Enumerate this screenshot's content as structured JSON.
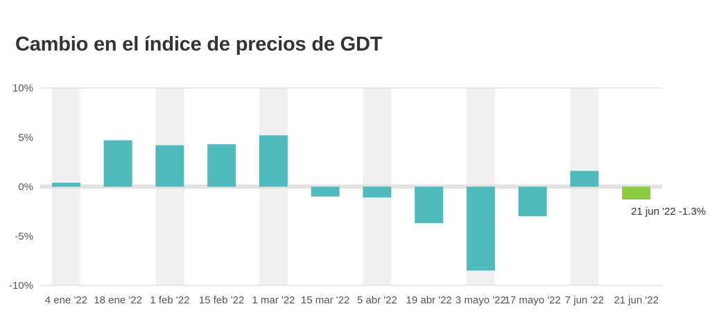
{
  "title": "Cambio en el índice de precios de GDT",
  "colors": {
    "bar": "#4fbbbd",
    "highlight_bar": "#8dcc3f",
    "band": "#f0f0f0",
    "zero_line": "#e2e2e2",
    "text": "#555555"
  },
  "chart_data": {
    "type": "bar",
    "title": "Cambio en el índice de precios de GDT",
    "xlabel": "",
    "ylabel": "",
    "categories": [
      "4 ene '22",
      "18 ene '22",
      "1 feb '22",
      "15 feb '22",
      "1 mar '22",
      "15 mar '22",
      "5 abr '22",
      "19 abr '22",
      "3 mayo '22",
      "17 mayo '22",
      "7 jun '22",
      "21 jun '22"
    ],
    "values": [
      0.4,
      4.7,
      4.2,
      4.3,
      5.2,
      -1.0,
      -1.1,
      -3.7,
      -8.5,
      -3.0,
      1.6,
      -1.3
    ],
    "highlight_index": 11,
    "ylim": [
      -10,
      10
    ],
    "yticks": [
      10,
      5,
      0,
      -5,
      -10
    ],
    "ytick_labels": [
      "10%",
      "5%",
      "0%",
      "-5%",
      "-10%"
    ],
    "annotation": "21 jun '22 -1.3%",
    "grid": "alternating vertical bands",
    "legend": "none"
  }
}
